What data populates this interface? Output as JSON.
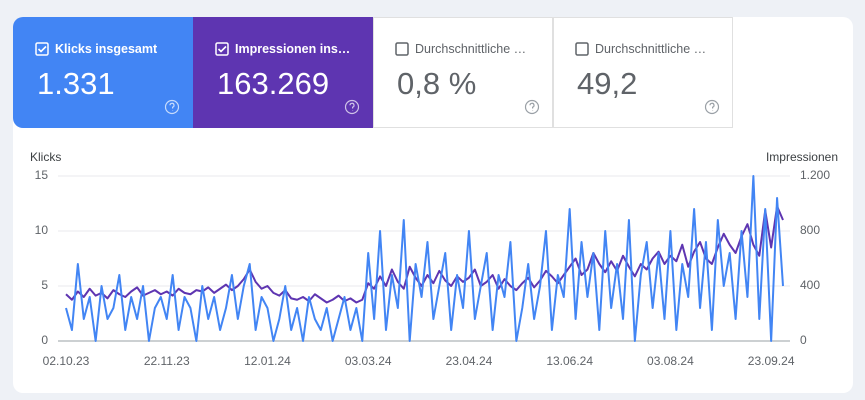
{
  "cards": [
    {
      "label": "Klicks insgesamt",
      "value": "1.331",
      "checked": true,
      "color": "#4285f4"
    },
    {
      "label": "Impressionen ins…",
      "value": "163.269",
      "checked": true,
      "color": "#5e35b1"
    },
    {
      "label": "Durchschnittliche …",
      "value": "0,8 %",
      "checked": false
    },
    {
      "label": "Durchschnittliche …",
      "value": "49,2",
      "checked": false
    }
  ],
  "chart_data": {
    "type": "line",
    "ylabel": "Klicks",
    "y2label": "Impressionen",
    "ylim": [
      0,
      15
    ],
    "yticks": [
      0,
      5,
      10,
      15
    ],
    "y2lim": [
      0,
      1200
    ],
    "y2ticks": [
      0,
      400,
      800,
      {
        "value": 1200,
        "label": "1.200"
      }
    ],
    "grid": true,
    "categories": [
      "02.10.23",
      null,
      null,
      null,
      null,
      null,
      null,
      null,
      null,
      null,
      null,
      null,
      null,
      null,
      null,
      null,
      null,
      "22.11.23",
      null,
      null,
      null,
      null,
      null,
      null,
      null,
      null,
      null,
      null,
      null,
      null,
      null,
      null,
      null,
      null,
      "12.01.24",
      null,
      null,
      null,
      null,
      null,
      null,
      null,
      null,
      null,
      null,
      null,
      null,
      null,
      null,
      null,
      null,
      "03.03.24",
      null,
      null,
      null,
      null,
      null,
      null,
      null,
      null,
      null,
      null,
      null,
      null,
      null,
      null,
      null,
      null,
      "23.04.24",
      null,
      null,
      null,
      null,
      null,
      null,
      null,
      null,
      null,
      null,
      null,
      null,
      null,
      null,
      null,
      null,
      "13.06.24",
      null,
      null,
      null,
      null,
      null,
      null,
      null,
      null,
      null,
      null,
      null,
      null,
      null,
      null,
      null,
      null,
      "03.08.24",
      null,
      null,
      null,
      null,
      null,
      null,
      null,
      null,
      null,
      null,
      null,
      null,
      null,
      null,
      null,
      null,
      "23.09.24",
      null,
      null
    ],
    "series": [
      {
        "name": "Impressionen",
        "color": "#5e35b1",
        "axis": "y2",
        "values": [
          340,
          300,
          360,
          320,
          380,
          330,
          350,
          310,
          370,
          340,
          320,
          360,
          390,
          330,
          350,
          370,
          340,
          360,
          330,
          380,
          350,
          340,
          370,
          360,
          390,
          350,
          380,
          410,
          370,
          400,
          450,
          520,
          430,
          380,
          400,
          350,
          330,
          370,
          310,
          300,
          320,
          290,
          340,
          310,
          280,
          300,
          330,
          290,
          310,
          280,
          300,
          420,
          380,
          470,
          400,
          520,
          430,
          380,
          540,
          460,
          400,
          480,
          420,
          510,
          440,
          400,
          470,
          430,
          460,
          520,
          400,
          430,
          480,
          380,
          450,
          400,
          370,
          420,
          460,
          390,
          440,
          510,
          470,
          420,
          480,
          540,
          600,
          480,
          520,
          640,
          560,
          500,
          580,
          510,
          620,
          540,
          470,
          560,
          520,
          600,
          650,
          560,
          620,
          580,
          700,
          540,
          650,
          720,
          600,
          560,
          680,
          780,
          700,
          640,
          760,
          850,
          700,
          620,
          950,
          680,
          980,
          880
        ]
      },
      {
        "name": "Klicks",
        "color": "#4285f4",
        "values": [
          3,
          1,
          7,
          2,
          4,
          0,
          5,
          2,
          3,
          6,
          1,
          4,
          2,
          5,
          0,
          3,
          4,
          2,
          6,
          1,
          4,
          3,
          0,
          5,
          2,
          4,
          1,
          3,
          6,
          2,
          5,
          7,
          1,
          4,
          3,
          0,
          2,
          5,
          1,
          3,
          0,
          4,
          2,
          1,
          3,
          0,
          2,
          4,
          1,
          3,
          0,
          8,
          2,
          10,
          1,
          6,
          3,
          11,
          0,
          7,
          4,
          9,
          2,
          5,
          8,
          1,
          6,
          3,
          10,
          2,
          5,
          8,
          1,
          6,
          4,
          9,
          0,
          3,
          7,
          2,
          5,
          10,
          1,
          6,
          4,
          12,
          2,
          9,
          4,
          8,
          1,
          10,
          3,
          7,
          2,
          11,
          0,
          6,
          9,
          3,
          8,
          2,
          10,
          1,
          7,
          4,
          12,
          3,
          9,
          1,
          11,
          5,
          8,
          2,
          10,
          4,
          15,
          2,
          12,
          0,
          13,
          5
        ]
      }
    ]
  }
}
